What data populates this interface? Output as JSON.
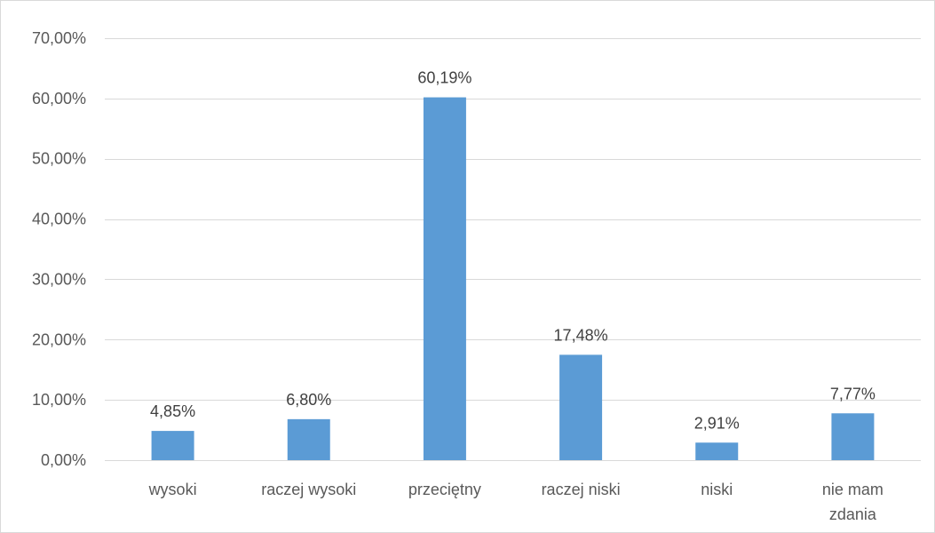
{
  "chart_data": {
    "type": "bar",
    "title": "",
    "xlabel": "",
    "ylabel": "",
    "categories": [
      [
        "wysoki"
      ],
      [
        "raczej wysoki"
      ],
      [
        "przeciętny"
      ],
      [
        "raczej niski"
      ],
      [
        "niski"
      ],
      [
        "nie mam",
        "zdania"
      ]
    ],
    "values": [
      4.85,
      6.8,
      60.19,
      17.48,
      2.91,
      7.77
    ],
    "data_labels": [
      "4,85%",
      "6,80%",
      "60,19%",
      "17,48%",
      "2,91%",
      "7,77%"
    ],
    "ylim": [
      0,
      70
    ],
    "yticks": [
      0,
      10,
      20,
      30,
      40,
      50,
      60,
      70
    ],
    "ytick_labels": [
      "0,00%",
      "10,00%",
      "20,00%",
      "30,00%",
      "40,00%",
      "50,00%",
      "60,00%",
      "70,00%"
    ],
    "grid": true,
    "legend": "none",
    "colors": {
      "bar": "#5b9bd5",
      "grid": "#d9d9d9",
      "axis": "#d9d9d9",
      "tick_text": "#595959",
      "label_text": "#404040"
    }
  }
}
